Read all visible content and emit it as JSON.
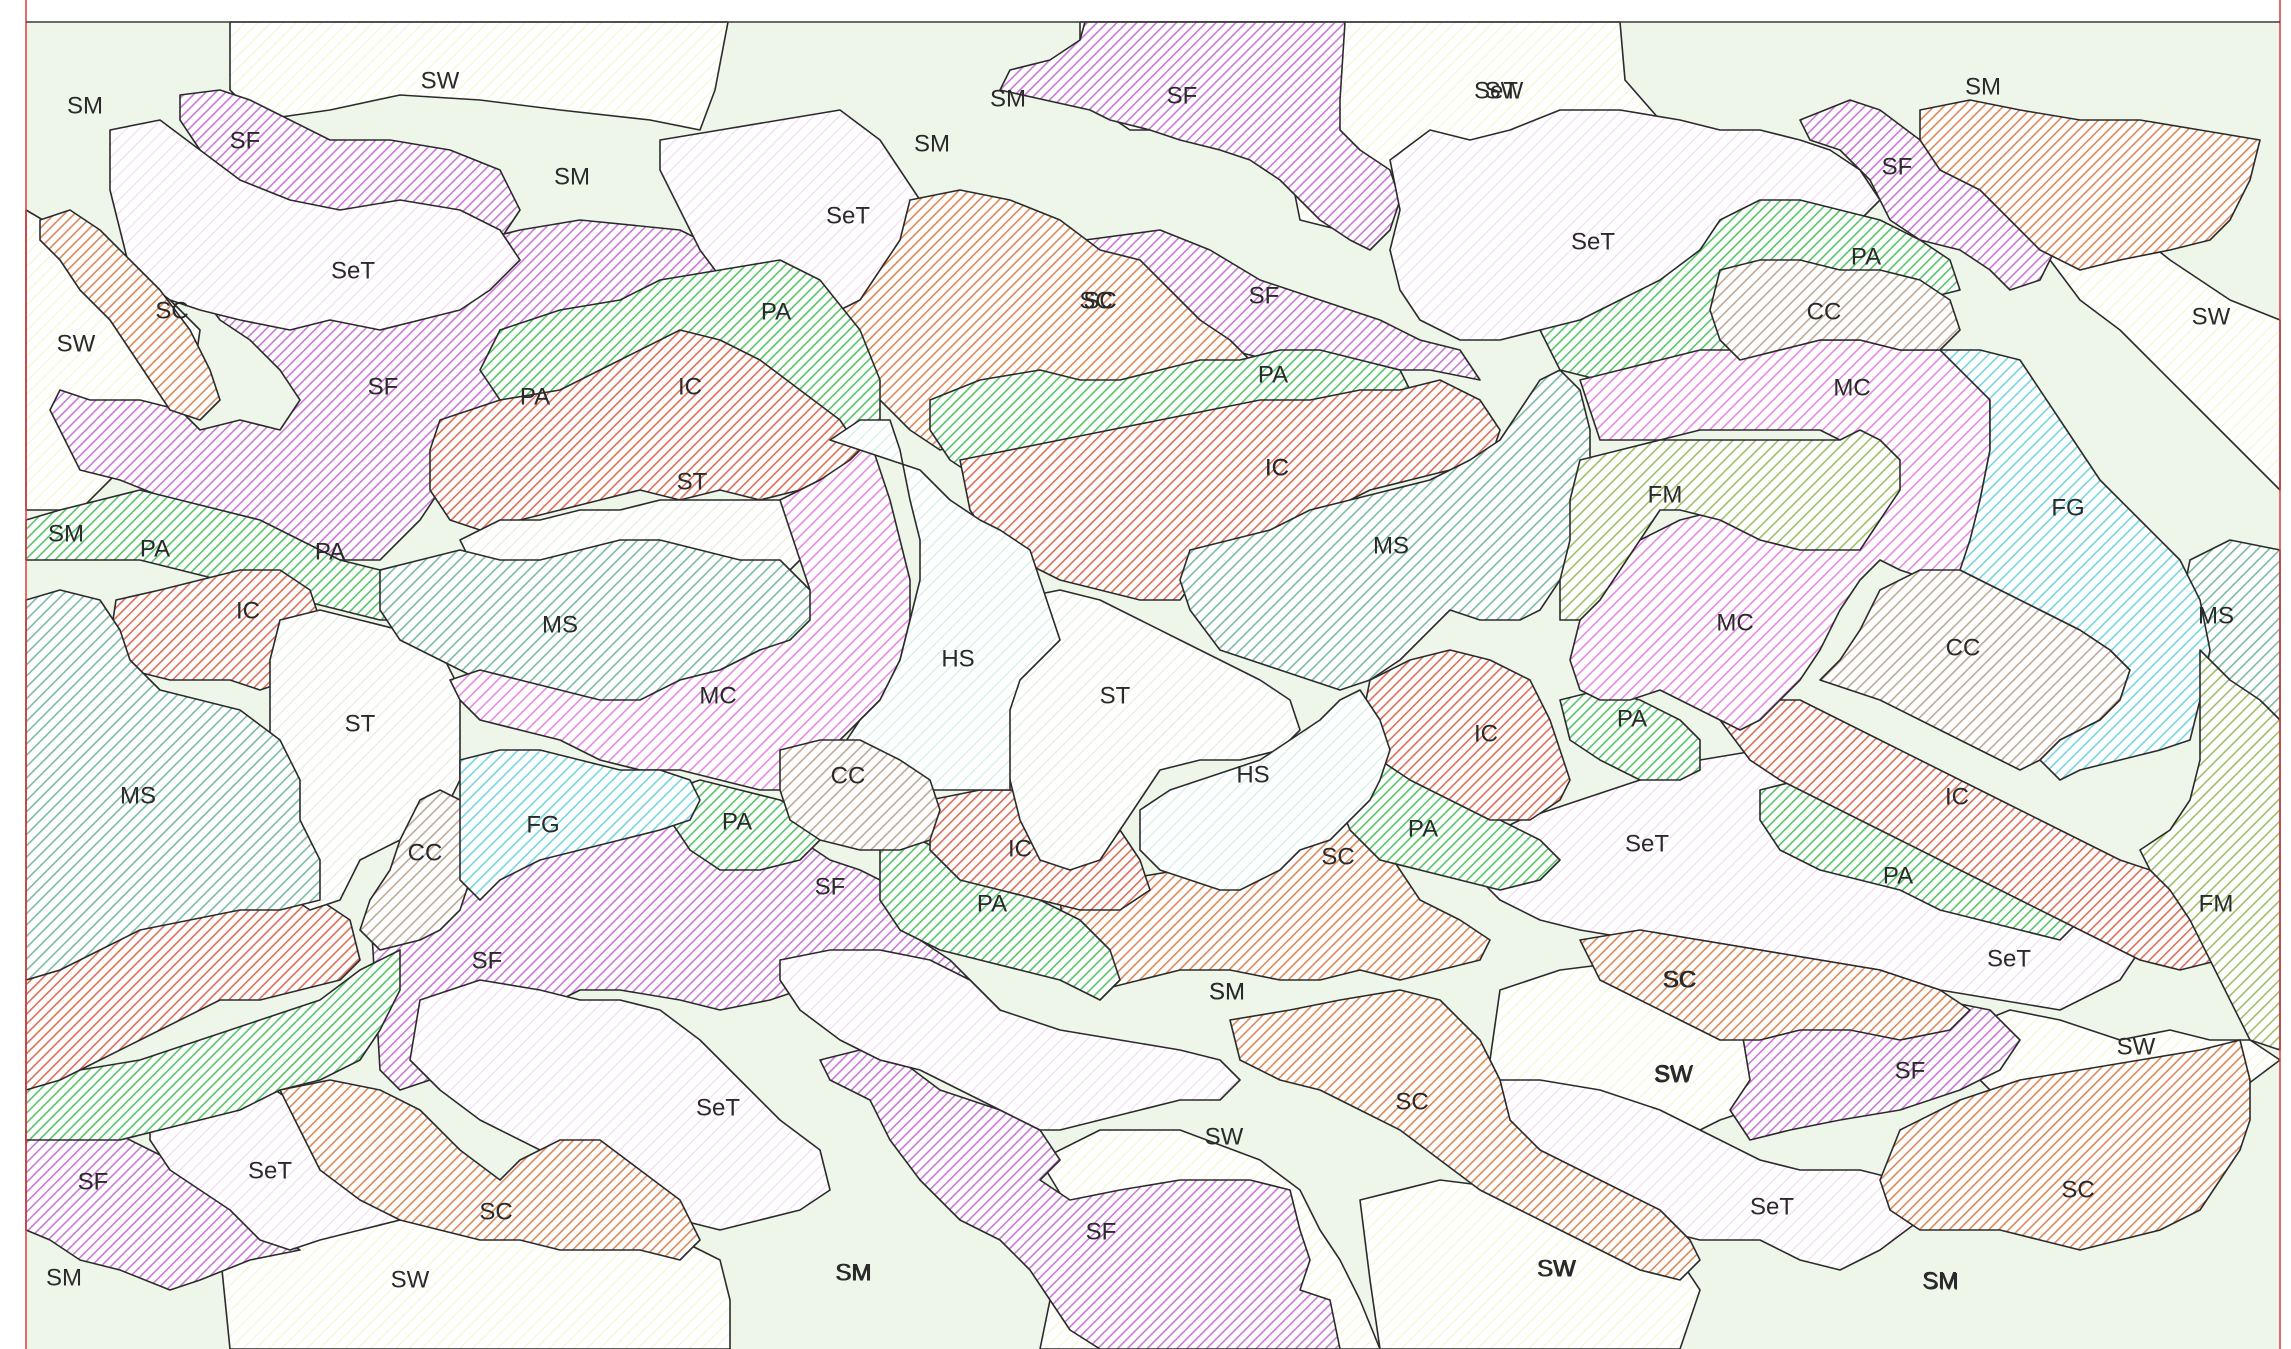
{
  "map": {
    "border_color": "#e03a3a",
    "legend_colors": {
      "SM": "#d9ecd3",
      "SW": "#f3f6cf",
      "SF": "#c97ad6",
      "SeT": "#f3d8f2",
      "SC": "#d98a5a",
      "PA": "#58c46a",
      "IC": "#d9705a",
      "ST": "#e3ecd9",
      "MS": "#7dbba4",
      "MC": "#e58ce0",
      "HS": "#cfeee4",
      "CC": "#bfaa98",
      "FG": "#77d6df",
      "FM": "#9dc06b"
    },
    "labels": [
      {
        "code": "SM",
        "name": "label-sm-1"
      },
      {
        "code": "SW",
        "name": "label-sw-1"
      },
      {
        "code": "SF",
        "name": "label-sf-1"
      },
      {
        "code": "SM",
        "name": "label-sm-2"
      },
      {
        "code": "SeT",
        "name": "label-set-1"
      },
      {
        "code": "SC",
        "name": "label-sc-1"
      },
      {
        "code": "SW",
        "name": "label-sw-2"
      },
      {
        "code": "SF",
        "name": "label-sf-2"
      },
      {
        "code": "SM",
        "name": "label-sm-3"
      },
      {
        "code": "PA",
        "name": "label-pa-1"
      },
      {
        "code": "PA",
        "name": "label-pa-2"
      },
      {
        "code": "IC",
        "name": "label-ic-1"
      },
      {
        "code": "ST",
        "name": "label-st-1"
      },
      {
        "code": "PA",
        "name": "label-pa-3"
      },
      {
        "code": "PA",
        "name": "label-pa-4"
      },
      {
        "code": "SM",
        "name": "label-sm-4"
      },
      {
        "code": "IC",
        "name": "label-ic-2"
      },
      {
        "code": "MS",
        "name": "label-ms-1"
      },
      {
        "code": "ST",
        "name": "label-st-2"
      },
      {
        "code": "MS",
        "name": "label-ms-2"
      },
      {
        "code": "MC",
        "name": "label-mc-1"
      },
      {
        "code": "FG",
        "name": "label-fg-1"
      },
      {
        "code": "CC",
        "name": "label-cc-1"
      },
      {
        "code": "IC",
        "name": "label-ic-3"
      },
      {
        "code": "PA",
        "name": "label-pa-5"
      },
      {
        "code": "SF",
        "name": "label-sf-3"
      },
      {
        "code": "SeT",
        "name": "label-set-2"
      },
      {
        "code": "SC",
        "name": "label-sc-2"
      },
      {
        "code": "SF",
        "name": "label-sf-4"
      },
      {
        "code": "PA",
        "name": "label-pa-6"
      },
      {
        "code": "IC",
        "name": "label-ic-4"
      },
      {
        "code": "HS",
        "name": "label-hs-1"
      },
      {
        "code": "CC",
        "name": "label-cc-2"
      },
      {
        "code": "PA",
        "name": "label-pa-7"
      },
      {
        "code": "SF",
        "name": "label-sf-5"
      },
      {
        "code": "SM",
        "name": "label-sm-5"
      },
      {
        "code": "SF",
        "name": "label-sf-6"
      },
      {
        "code": "SM",
        "name": "label-sm-6"
      },
      {
        "code": "SeT",
        "name": "label-set-3"
      },
      {
        "code": "SeT",
        "name": "label-set-4"
      },
      {
        "code": "SC",
        "name": "label-sc-3"
      },
      {
        "code": "SW",
        "name": "label-sw-3"
      },
      {
        "code": "SF",
        "name": "label-sf-7"
      },
      {
        "code": "IC",
        "name": "label-ic-5"
      },
      {
        "code": "ST",
        "name": "label-st-3"
      },
      {
        "code": "HS",
        "name": "label-hs-2"
      },
      {
        "code": "SC",
        "name": "label-sc-4"
      },
      {
        "code": "PA",
        "name": "label-pa-8"
      },
      {
        "code": "MS",
        "name": "label-ms-3"
      },
      {
        "code": "IC",
        "name": "label-ic-6"
      },
      {
        "code": "PA",
        "name": "label-pa-9"
      },
      {
        "code": "SeT",
        "name": "label-set-5"
      },
      {
        "code": "SM",
        "name": "label-sm-7"
      },
      {
        "code": "SC",
        "name": "label-sc-5"
      },
      {
        "code": "SW",
        "name": "label-sw-4"
      },
      {
        "code": "SC",
        "name": "label-sc-6"
      },
      {
        "code": "SW",
        "name": "label-sw-5"
      },
      {
        "code": "SeT",
        "name": "label-set-6"
      },
      {
        "code": "SF",
        "name": "label-sf-8"
      },
      {
        "code": "SM",
        "name": "label-sm-8"
      },
      {
        "code": "SW",
        "name": "label-sw-6"
      },
      {
        "code": "SeT",
        "name": "label-set-7"
      },
      {
        "code": "SF",
        "name": "label-sf-9"
      },
      {
        "code": "SM",
        "name": "label-sm-9"
      },
      {
        "code": "PA",
        "name": "label-pa-10"
      },
      {
        "code": "CC",
        "name": "label-cc-3"
      },
      {
        "code": "MC",
        "name": "label-mc-2"
      },
      {
        "code": "FM",
        "name": "label-fm-1"
      },
      {
        "code": "MC",
        "name": "label-mc-3"
      },
      {
        "code": "FG",
        "name": "label-fg-2"
      },
      {
        "code": "CC",
        "name": "label-cc-4"
      },
      {
        "code": "IC",
        "name": "label-ic-7"
      },
      {
        "code": "PA",
        "name": "label-pa-11"
      },
      {
        "code": "MS",
        "name": "label-ms-4"
      },
      {
        "code": "FM",
        "name": "label-fm-2"
      },
      {
        "code": "SC",
        "name": "label-sc-7"
      },
      {
        "code": "SeT",
        "name": "label-set-8"
      },
      {
        "code": "SW",
        "name": "label-sw-7"
      },
      {
        "code": "SW",
        "name": "label-sw-8"
      },
      {
        "code": "SF",
        "name": "label-sf-10"
      },
      {
        "code": "SC",
        "name": "label-sc-8"
      },
      {
        "code": "SeT",
        "name": "label-set-9"
      },
      {
        "code": "SM",
        "name": "label-sm-10"
      },
      {
        "code": "SW",
        "name": "label-sw-9"
      },
      {
        "code": "SM",
        "name": "label-sm-11"
      },
      {
        "code": "SW",
        "name": "label-sw-10"
      },
      {
        "code": "SC",
        "name": "label-sc-9"
      },
      {
        "code": "SM",
        "name": "label-sm-12"
      },
      {
        "code": "SW",
        "name": "label-sw-11"
      },
      {
        "code": "SM",
        "name": "label-sm-13"
      }
    ]
  }
}
